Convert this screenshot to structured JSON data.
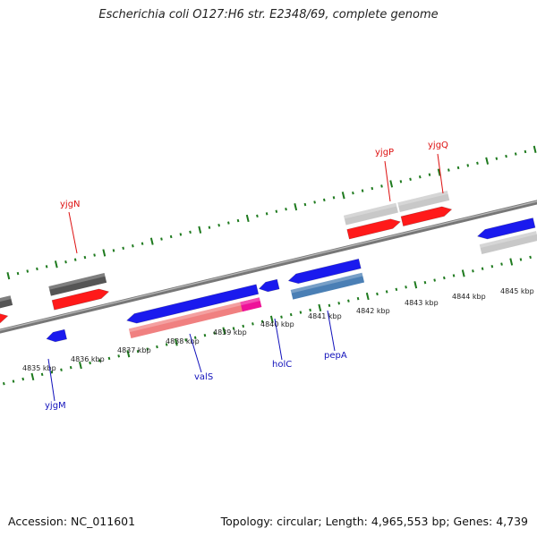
{
  "title": "Escherichia coli O127:H6 str. E2348/69, complete genome",
  "footer": {
    "accession": "Accession: NC_011601",
    "info": "Topology: circular; Length: 4,965,553 bp; Genes: 4,739"
  },
  "colors": {
    "backbone": "#8a8a8a",
    "tick": "#1e7a1e",
    "fwd_gene": "#ff1a1a",
    "rev_gene": "#1a1aee",
    "fwd_label": "#dd1111",
    "rev_label": "#1111bb",
    "pseudo": "#555555",
    "rna": "#ee1199"
  },
  "axis": {
    "kbp_labels": [
      "4835 kbp",
      "4836 kbp",
      "4837 kbp",
      "4838 kbp",
      "4839 kbp",
      "4840 kbp",
      "4841 kbp",
      "4842 kbp",
      "4843 kbp",
      "4844 kbp",
      "4845 kbp"
    ]
  },
  "gene_labels": [
    {
      "name": "yjgN",
      "strand": "top"
    },
    {
      "name": "yjgP",
      "strand": "top"
    },
    {
      "name": "yjgQ",
      "strand": "top"
    },
    {
      "name": "yjgM",
      "strand": "bottom"
    },
    {
      "name": "valS",
      "strand": "bottom"
    },
    {
      "name": "holC",
      "strand": "bottom"
    },
    {
      "name": "pepA",
      "strand": "bottom"
    }
  ]
}
